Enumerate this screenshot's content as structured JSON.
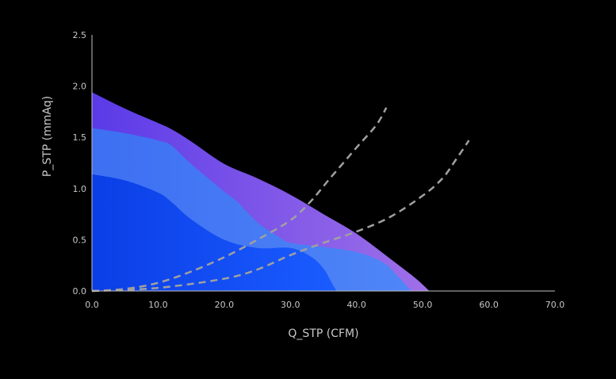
{
  "chart_data": {
    "type": "area",
    "xlabel": "Q_STP (CFM)",
    "ylabel": "P_STP (mmAq)",
    "xlim": [
      0,
      70
    ],
    "ylim": [
      0,
      2.5
    ],
    "x_ticks": [
      "0.0",
      "10.0",
      "20.0",
      "30.0",
      "40.0",
      "50.0",
      "60.0",
      "70.0"
    ],
    "y_ticks": [
      "0.0",
      "0.5",
      "1.0",
      "1.5",
      "2.0",
      "2.5"
    ],
    "grid": false,
    "areas": [
      {
        "color_start": "#5a3ae8",
        "color_end": "#a070e8",
        "points": [
          [
            0,
            1.94
          ],
          [
            5,
            1.78
          ],
          [
            10,
            1.64
          ],
          [
            12,
            1.58
          ],
          [
            15,
            1.46
          ],
          [
            20,
            1.24
          ],
          [
            25,
            1.1
          ],
          [
            30,
            0.94
          ],
          [
            35,
            0.75
          ],
          [
            40,
            0.56
          ],
          [
            45,
            0.32
          ],
          [
            49,
            0.12
          ],
          [
            51,
            0.0
          ]
        ]
      },
      {
        "color_start": "#3d6ff2",
        "color_end": "#4f86f7",
        "points": [
          [
            0,
            1.59
          ],
          [
            5,
            1.54
          ],
          [
            10,
            1.47
          ],
          [
            12,
            1.42
          ],
          [
            15,
            1.24
          ],
          [
            20,
            0.97
          ],
          [
            22,
            0.87
          ],
          [
            25,
            0.67
          ],
          [
            28,
            0.54
          ],
          [
            30,
            0.47
          ],
          [
            35,
            0.43
          ],
          [
            40,
            0.38
          ],
          [
            44,
            0.28
          ],
          [
            46,
            0.16
          ],
          [
            48,
            0.02
          ],
          [
            48.5,
            0.0
          ]
        ]
      },
      {
        "color_start": "#0b3ee6",
        "color_end": "#1a5cff",
        "points": [
          [
            0,
            1.14
          ],
          [
            5,
            1.08
          ],
          [
            10,
            0.96
          ],
          [
            12,
            0.87
          ],
          [
            15,
            0.7
          ],
          [
            20,
            0.5
          ],
          [
            25,
            0.42
          ],
          [
            30,
            0.42
          ],
          [
            33,
            0.34
          ],
          [
            35,
            0.22
          ],
          [
            36.5,
            0.05
          ],
          [
            37,
            0.0
          ]
        ]
      }
    ],
    "curves": [
      {
        "color": "#a0a0a0",
        "points": [
          [
            0,
            0.0
          ],
          [
            5,
            0.02
          ],
          [
            10,
            0.08
          ],
          [
            15,
            0.19
          ],
          [
            20,
            0.33
          ],
          [
            25,
            0.5
          ],
          [
            30,
            0.69
          ],
          [
            33,
            0.87
          ],
          [
            36,
            1.1
          ],
          [
            40,
            1.4
          ],
          [
            43,
            1.62
          ],
          [
            44.5,
            1.79
          ]
        ]
      },
      {
        "color": "#a0a0a0",
        "points": [
          [
            0,
            0.0
          ],
          [
            10,
            0.03
          ],
          [
            20,
            0.12
          ],
          [
            25,
            0.21
          ],
          [
            30,
            0.35
          ],
          [
            35,
            0.47
          ],
          [
            40,
            0.58
          ],
          [
            45,
            0.72
          ],
          [
            50,
            0.93
          ],
          [
            53,
            1.1
          ],
          [
            55,
            1.28
          ],
          [
            57,
            1.47
          ]
        ]
      }
    ]
  }
}
